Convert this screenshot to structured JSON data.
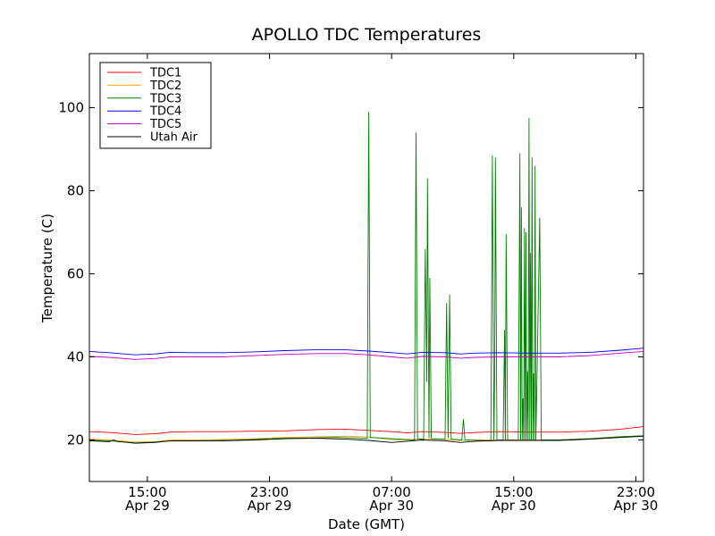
{
  "chart_data": {
    "type": "line",
    "title": "APOLLO TDC Temperatures",
    "xlabel": "Date (GMT)",
    "ylabel": "Temperature (C)",
    "xlim_hours": [
      11.2,
      47.5
    ],
    "ylim": [
      10,
      113
    ],
    "yticks": [
      20,
      40,
      60,
      80,
      100
    ],
    "xticks": [
      {
        "hour": 15,
        "time": "15:00",
        "date": "Apr 29"
      },
      {
        "hour": 23,
        "time": "23:00",
        "date": "Apr 29"
      },
      {
        "hour": 31,
        "time": "07:00",
        "date": "Apr 30"
      },
      {
        "hour": 39,
        "time": "15:00",
        "date": "Apr 30"
      },
      {
        "hour": 47,
        "time": "23:00",
        "date": "Apr 30"
      }
    ],
    "legend_position": "top-left",
    "series": [
      {
        "name": "TDC1",
        "color": "#ff0000",
        "points": [
          [
            11.2,
            22.0
          ],
          [
            12.5,
            21.8
          ],
          [
            14.2,
            21.3
          ],
          [
            15.5,
            21.5
          ],
          [
            16.5,
            21.9
          ],
          [
            18,
            22.0
          ],
          [
            20,
            22.0
          ],
          [
            22,
            22.1
          ],
          [
            24,
            22.2
          ],
          [
            26,
            22.5
          ],
          [
            28,
            22.6
          ],
          [
            29.5,
            22.3
          ],
          [
            31,
            22.0
          ],
          [
            32,
            21.7
          ],
          [
            33,
            22.0
          ],
          [
            34.5,
            21.8
          ],
          [
            35.5,
            21.6
          ],
          [
            36.5,
            21.8
          ],
          [
            38,
            22.0
          ],
          [
            40,
            21.9
          ],
          [
            42,
            21.9
          ],
          [
            44,
            22.1
          ],
          [
            46,
            22.6
          ],
          [
            47.5,
            23.2
          ]
        ]
      },
      {
        "name": "TDC2",
        "color": "#ffa500",
        "points": [
          [
            11.2,
            20.2
          ],
          [
            12.5,
            20.0
          ],
          [
            14.2,
            19.5
          ],
          [
            15.5,
            19.6
          ],
          [
            16.5,
            20.0
          ],
          [
            18,
            20.0
          ],
          [
            20,
            20.1
          ],
          [
            22,
            20.3
          ],
          [
            24,
            20.6
          ],
          [
            26,
            20.8
          ],
          [
            28,
            20.9
          ],
          [
            29.5,
            20.7
          ],
          [
            31,
            20.1
          ],
          [
            32,
            20.0
          ],
          [
            33,
            20.3
          ],
          [
            34.5,
            20.1
          ],
          [
            35.5,
            19.9
          ],
          [
            36.5,
            20.0
          ],
          [
            38,
            20.0
          ],
          [
            40,
            20.0
          ],
          [
            42,
            20.0
          ],
          [
            44,
            20.3
          ],
          [
            46,
            20.8
          ],
          [
            47.5,
            21.0
          ]
        ]
      },
      {
        "name": "TDC3",
        "color": "#008000",
        "points": [
          [
            11.2,
            20.0
          ],
          [
            12.5,
            19.8
          ],
          [
            14.2,
            19.3
          ],
          [
            15.5,
            19.5
          ],
          [
            16.5,
            19.8
          ],
          [
            18,
            19.8
          ],
          [
            20,
            19.9
          ],
          [
            22,
            20.1
          ],
          [
            24,
            20.4
          ],
          [
            26,
            20.5
          ],
          [
            27.5,
            20.6
          ],
          [
            28.5,
            20.5
          ],
          [
            29.4,
            20.4
          ],
          [
            29.5,
            99.0
          ],
          [
            29.6,
            20.6
          ],
          [
            30.5,
            20.4
          ],
          [
            31.5,
            20.2
          ],
          [
            32.5,
            20.0
          ],
          [
            32.6,
            94.0
          ],
          [
            32.7,
            20.3
          ],
          [
            33.1,
            20.1
          ],
          [
            33.2,
            66.0
          ],
          [
            33.3,
            34.0
          ],
          [
            33.35,
            83.0
          ],
          [
            33.45,
            20.5
          ],
          [
            33.5,
            59.0
          ],
          [
            33.6,
            20.3
          ],
          [
            34.5,
            20.2
          ],
          [
            34.6,
            53.0
          ],
          [
            34.7,
            20.4
          ],
          [
            34.8,
            55.0
          ],
          [
            34.9,
            20.2
          ],
          [
            35.6,
            20.0
          ],
          [
            35.7,
            25.0
          ],
          [
            35.8,
            20.0
          ],
          [
            37.5,
            19.8
          ],
          [
            37.6,
            88.5
          ],
          [
            37.7,
            19.9
          ],
          [
            37.75,
            36.0
          ],
          [
            37.8,
            88.0
          ],
          [
            37.9,
            20.0
          ],
          [
            38.3,
            20.0
          ],
          [
            38.4,
            46.5
          ],
          [
            38.45,
            20.0
          ],
          [
            38.5,
            69.5
          ],
          [
            38.6,
            20.0
          ],
          [
            39.3,
            19.9
          ],
          [
            39.4,
            89.0
          ],
          [
            39.45,
            20.0
          ],
          [
            39.5,
            76.0
          ],
          [
            39.55,
            19.8
          ],
          [
            39.6,
            30.0
          ],
          [
            39.65,
            20.0
          ],
          [
            39.7,
            71.0
          ],
          [
            39.75,
            20.0
          ],
          [
            39.8,
            70.0
          ],
          [
            39.85,
            20.0
          ],
          [
            39.9,
            36.5
          ],
          [
            39.95,
            20.0
          ],
          [
            40.0,
            97.5
          ],
          [
            40.05,
            20.0
          ],
          [
            40.1,
            65.0
          ],
          [
            40.15,
            20.0
          ],
          [
            40.2,
            88.0
          ],
          [
            40.25,
            20.0
          ],
          [
            40.3,
            36.0
          ],
          [
            40.35,
            20.0
          ],
          [
            40.4,
            86.0
          ],
          [
            40.45,
            20.0
          ],
          [
            40.7,
            73.5
          ],
          [
            40.8,
            20.0
          ],
          [
            42,
            20.0
          ],
          [
            44,
            20.3
          ],
          [
            46,
            20.8
          ],
          [
            47.5,
            21.0
          ]
        ]
      },
      {
        "name": "TDC4",
        "color": "#0000ff",
        "points": [
          [
            11.2,
            41.3
          ],
          [
            12.5,
            41.0
          ],
          [
            14.2,
            40.5
          ],
          [
            15.5,
            40.7
          ],
          [
            16.5,
            41.1
          ],
          [
            18,
            41.0
          ],
          [
            20,
            41.0
          ],
          [
            22,
            41.2
          ],
          [
            24,
            41.5
          ],
          [
            26,
            41.7
          ],
          [
            28,
            41.7
          ],
          [
            29.5,
            41.4
          ],
          [
            31,
            41.0
          ],
          [
            32,
            40.7
          ],
          [
            33,
            41.1
          ],
          [
            34.5,
            41.0
          ],
          [
            35.5,
            40.7
          ],
          [
            36.5,
            40.9
          ],
          [
            38,
            41.0
          ],
          [
            40,
            40.9
          ],
          [
            42,
            40.9
          ],
          [
            44,
            41.1
          ],
          [
            46,
            41.6
          ],
          [
            47.5,
            42.1
          ]
        ]
      },
      {
        "name": "TDC5",
        "color": "#bf00bf",
        "points": [
          [
            11.2,
            40.1
          ],
          [
            12.5,
            39.9
          ],
          [
            14.2,
            39.4
          ],
          [
            15.5,
            39.6
          ],
          [
            16.5,
            40.0
          ],
          [
            18,
            40.0
          ],
          [
            20,
            40.0
          ],
          [
            22,
            40.3
          ],
          [
            24,
            40.6
          ],
          [
            26,
            40.8
          ],
          [
            28,
            40.8
          ],
          [
            29.5,
            40.5
          ],
          [
            31,
            40.0
          ],
          [
            32,
            39.7
          ],
          [
            33,
            40.1
          ],
          [
            34.5,
            40.0
          ],
          [
            35.5,
            39.7
          ],
          [
            36.5,
            39.9
          ],
          [
            38,
            40.0
          ],
          [
            40,
            40.0
          ],
          [
            42,
            40.0
          ],
          [
            44,
            40.3
          ],
          [
            46,
            40.9
          ],
          [
            47.5,
            41.3
          ]
        ]
      },
      {
        "name": "Utah Air",
        "color": "#000000",
        "points": [
          [
            11.2,
            19.8
          ],
          [
            12.5,
            19.6
          ],
          [
            12.8,
            20.0
          ],
          [
            13.0,
            19.7
          ],
          [
            14.2,
            19.2
          ],
          [
            15.5,
            19.4
          ],
          [
            16.5,
            19.8
          ],
          [
            18,
            19.8
          ],
          [
            20,
            19.8
          ],
          [
            22,
            20.0
          ],
          [
            24,
            20.3
          ],
          [
            26,
            20.4
          ],
          [
            28,
            20.2
          ],
          [
            29.5,
            19.9
          ],
          [
            31,
            19.4
          ],
          [
            32,
            19.7
          ],
          [
            33,
            20.0
          ],
          [
            34.5,
            19.8
          ],
          [
            35.5,
            19.4
          ],
          [
            36.5,
            19.7
          ],
          [
            38,
            19.9
          ],
          [
            40,
            19.9
          ],
          [
            42,
            19.9
          ],
          [
            44,
            20.2
          ],
          [
            46,
            20.6
          ],
          [
            47.5,
            20.9
          ]
        ]
      }
    ]
  }
}
